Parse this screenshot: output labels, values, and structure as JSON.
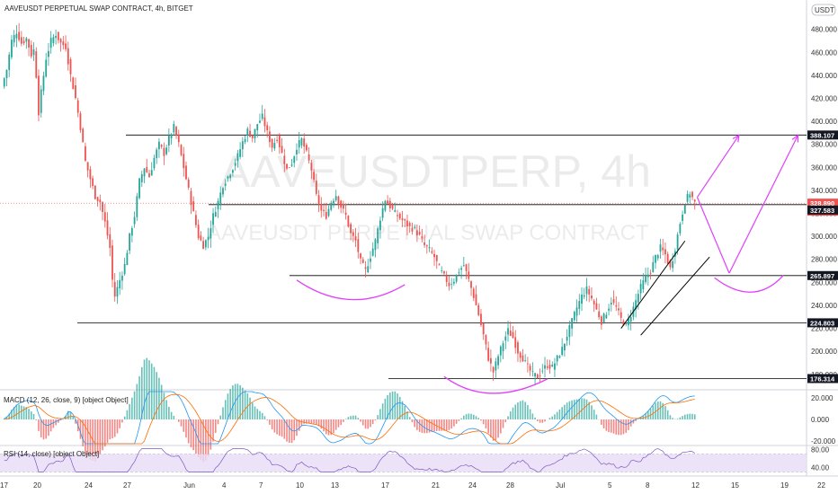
{
  "header": {
    "title": "AAVEUSDT PERPETUAL SWAP CONTRACT, 4h, BITGET",
    "currency": "USDT"
  },
  "watermark": {
    "symbol": "AAVEUSDTPERP, 4h",
    "name": "AAVEUSDT PERPETUAL SWAP CONTRACT"
  },
  "colors": {
    "up": "#26a69a",
    "down": "#ef5350",
    "projection": "#e040fb",
    "macd_line": "#2196f3",
    "signal_line": "#ff6d00",
    "rsi_line": "#7e57c2",
    "rsi_band": "#e9dcf7"
  },
  "chart_data": {
    "type": "candlestick",
    "price_axis": {
      "min": 172,
      "max": 486,
      "ticks": [
        "480.000",
        "460.000",
        "440.000",
        "420.000",
        "400.000",
        "380.000",
        "360.000",
        "340.000",
        "320.000",
        "300.000",
        "280.000",
        "260.000",
        "240.000",
        "220.000",
        "200.000",
        "180.000"
      ]
    },
    "time_axis": {
      "ticks": [
        "17",
        "20",
        "24",
        "27",
        "Jun",
        "4",
        "7",
        "10",
        "13",
        "17",
        "21",
        "24",
        "28",
        "Jul",
        "5",
        "8",
        "12",
        "15",
        "19",
        "22"
      ]
    },
    "price_markers": [
      {
        "value": 388.107,
        "label": "388.107"
      },
      {
        "value": 328.89,
        "label": "328.890",
        "countdown": "45:29",
        "current": true
      },
      {
        "value": 327.583,
        "label": "327.583"
      },
      {
        "value": 265.897,
        "label": "265.897"
      },
      {
        "value": 224.803,
        "label": "224.803"
      },
      {
        "value": 176.314,
        "label": "176.314"
      }
    ],
    "horizontal_levels": [
      388.107,
      327.583,
      265.897,
      224.803,
      176.314
    ],
    "candles_close_path": [
      [
        0,
        430
      ],
      [
        2,
        445
      ],
      [
        4,
        470
      ],
      [
        6,
        478
      ],
      [
        8,
        468
      ],
      [
        10,
        472
      ],
      [
        12,
        458
      ],
      [
        13,
        462
      ],
      [
        14,
        440
      ],
      [
        15,
        408
      ],
      [
        16,
        425
      ],
      [
        18,
        455
      ],
      [
        20,
        470
      ],
      [
        22,
        476
      ],
      [
        24,
        468
      ],
      [
        26,
        465
      ],
      [
        28,
        440
      ],
      [
        30,
        420
      ],
      [
        32,
        395
      ],
      [
        34,
        365
      ],
      [
        36,
        350
      ],
      [
        38,
        335
      ],
      [
        40,
        330
      ],
      [
        42,
        312
      ],
      [
        44,
        290
      ],
      [
        45,
        262
      ],
      [
        46,
        248
      ],
      [
        48,
        262
      ],
      [
        50,
        275
      ],
      [
        52,
        300
      ],
      [
        54,
        318
      ],
      [
        56,
        348
      ],
      [
        58,
        360
      ],
      [
        60,
        352
      ],
      [
        62,
        368
      ],
      [
        64,
        380
      ],
      [
        66,
        372
      ],
      [
        68,
        385
      ],
      [
        70,
        395
      ],
      [
        72,
        380
      ],
      [
        74,
        360
      ],
      [
        76,
        340
      ],
      [
        78,
        320
      ],
      [
        80,
        300
      ],
      [
        82,
        292
      ],
      [
        84,
        300
      ],
      [
        86,
        318
      ],
      [
        88,
        330
      ],
      [
        90,
        345
      ],
      [
        92,
        352
      ],
      [
        94,
        360
      ],
      [
        96,
        370
      ],
      [
        98,
        382
      ],
      [
        100,
        392
      ],
      [
        102,
        386
      ],
      [
        104,
        398
      ],
      [
        106,
        404
      ],
      [
        108,
        390
      ],
      [
        110,
        378
      ],
      [
        112,
        386
      ],
      [
        114,
        372
      ],
      [
        116,
        358
      ],
      [
        118,
        364
      ],
      [
        120,
        378
      ],
      [
        122,
        384
      ],
      [
        124,
        372
      ],
      [
        126,
        358
      ],
      [
        128,
        335
      ],
      [
        130,
        322
      ],
      [
        132,
        318
      ],
      [
        134,
        330
      ],
      [
        136,
        336
      ],
      [
        138,
        326
      ],
      [
        140,
        318
      ],
      [
        142,
        302
      ],
      [
        144,
        296
      ],
      [
        146,
        278
      ],
      [
        148,
        270
      ],
      [
        150,
        283
      ],
      [
        152,
        296
      ],
      [
        154,
        316
      ],
      [
        156,
        332
      ],
      [
        158,
        326
      ],
      [
        160,
        320
      ],
      [
        162,
        316
      ],
      [
        164,
        312
      ],
      [
        166,
        308
      ],
      [
        168,
        306
      ],
      [
        170,
        300
      ],
      [
        172,
        292
      ],
      [
        174,
        288
      ],
      [
        176,
        282
      ],
      [
        178,
        272
      ],
      [
        180,
        265
      ],
      [
        182,
        258
      ],
      [
        184,
        262
      ],
      [
        186,
        270
      ],
      [
        188,
        275
      ],
      [
        190,
        262
      ],
      [
        192,
        248
      ],
      [
        194,
        232
      ],
      [
        196,
        214
      ],
      [
        198,
        194
      ],
      [
        200,
        182
      ],
      [
        202,
        196
      ],
      [
        204,
        208
      ],
      [
        206,
        218
      ],
      [
        208,
        212
      ],
      [
        210,
        200
      ],
      [
        212,
        194
      ],
      [
        214,
        186
      ],
      [
        216,
        180
      ],
      [
        218,
        178
      ],
      [
        220,
        184
      ],
      [
        222,
        188
      ],
      [
        224,
        186
      ],
      [
        226,
        194
      ],
      [
        228,
        202
      ],
      [
        230,
        214
      ],
      [
        232,
        226
      ],
      [
        234,
        238
      ],
      [
        236,
        248
      ],
      [
        238,
        254
      ],
      [
        240,
        246
      ],
      [
        242,
        236
      ],
      [
        244,
        226
      ],
      [
        246,
        234
      ],
      [
        248,
        244
      ],
      [
        250,
        238
      ],
      [
        252,
        228
      ],
      [
        254,
        222
      ],
      [
        256,
        232
      ],
      [
        258,
        244
      ],
      [
        260,
        256
      ],
      [
        262,
        264
      ],
      [
        264,
        270
      ],
      [
        266,
        282
      ],
      [
        268,
        290
      ],
      [
        270,
        284
      ],
      [
        272,
        272
      ],
      [
        274,
        290
      ],
      [
        276,
        312
      ],
      [
        278,
        330
      ],
      [
        280,
        338
      ],
      [
        282,
        329
      ]
    ],
    "projections": [
      {
        "from": [
          283,
          334
        ],
        "to": [
          300,
          388
        ],
        "type": "arrow"
      },
      {
        "from": [
          283,
          334
        ],
        "to": [
          296,
          268
        ],
        "type": "line"
      },
      {
        "from": [
          296,
          268
        ],
        "to": [
          324,
          388
        ],
        "type": "arrow"
      }
    ],
    "channel": [
      {
        "from": [
          252,
          220
        ],
        "to": [
          278,
          296
        ]
      },
      {
        "from": [
          260,
          214
        ],
        "to": [
          288,
          282
        ]
      }
    ],
    "indicators": [
      {
        "name": "MACD (12, 26, close, 9) [object Object]",
        "axis": [
          "20.000",
          "0.000",
          "-20.000"
        ]
      },
      {
        "name": "RSI (14, close) [object Object]",
        "axis": [
          "80.00",
          "40.00"
        ]
      }
    ]
  }
}
